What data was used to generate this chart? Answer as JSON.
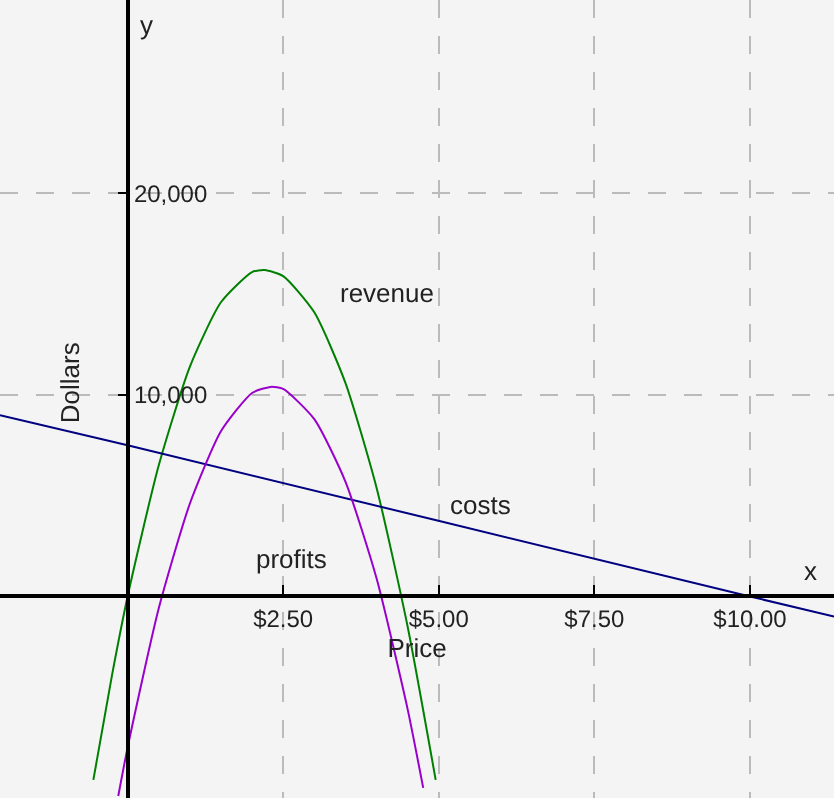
{
  "chart_data": {
    "type": "line",
    "xlabel": "Price",
    "ylabel": "Dollars",
    "annotations": [
      "x",
      "y"
    ],
    "xlim": [
      -2.05,
      11.35
    ],
    "ylim": [
      -10000,
      29600
    ],
    "xticks": [
      {
        "value": 2.5,
        "label": "$2.50"
      },
      {
        "value": 5,
        "label": "$5.00"
      },
      {
        "value": 7.5,
        "label": "$7.50"
      },
      {
        "value": 10,
        "label": "$10.00"
      }
    ],
    "yticks": [
      {
        "value": 10000,
        "label": "10,000"
      },
      {
        "value": 20000,
        "label": "20,000"
      }
    ],
    "grid": true,
    "marker": "none",
    "line_style": "solid",
    "legend": false,
    "series": [
      {
        "name": "revenue",
        "color": "#008000",
        "x": [
          -0.55,
          -0.25,
          0,
          0.5,
          1,
          1.5,
          2,
          2.2,
          2.5,
          3,
          3.5,
          4,
          4.5,
          4.95
        ],
        "values": [
          -9100,
          -3900,
          0,
          6500,
          11400,
          14600,
          16100,
          16200,
          15900,
          14100,
          10600,
          5400,
          -1500,
          -9100
        ]
      },
      {
        "name": "costs",
        "color": "#000080",
        "x": [
          -2.05,
          0,
          10,
          11.35
        ],
        "values": [
          9000,
          7500,
          0,
          -1000
        ]
      },
      {
        "name": "profits",
        "color": "#9900cc",
        "x": [
          -0.15,
          0,
          0.5,
          1,
          1.5,
          2,
          2.3,
          2.5,
          3,
          3.5,
          4,
          4.5,
          4.75
        ],
        "values": [
          -9900,
          -7500,
          -600,
          4600,
          8200,
          10100,
          10400,
          10300,
          8800,
          5700,
          900,
          -5600,
          -9500
        ]
      }
    ]
  }
}
